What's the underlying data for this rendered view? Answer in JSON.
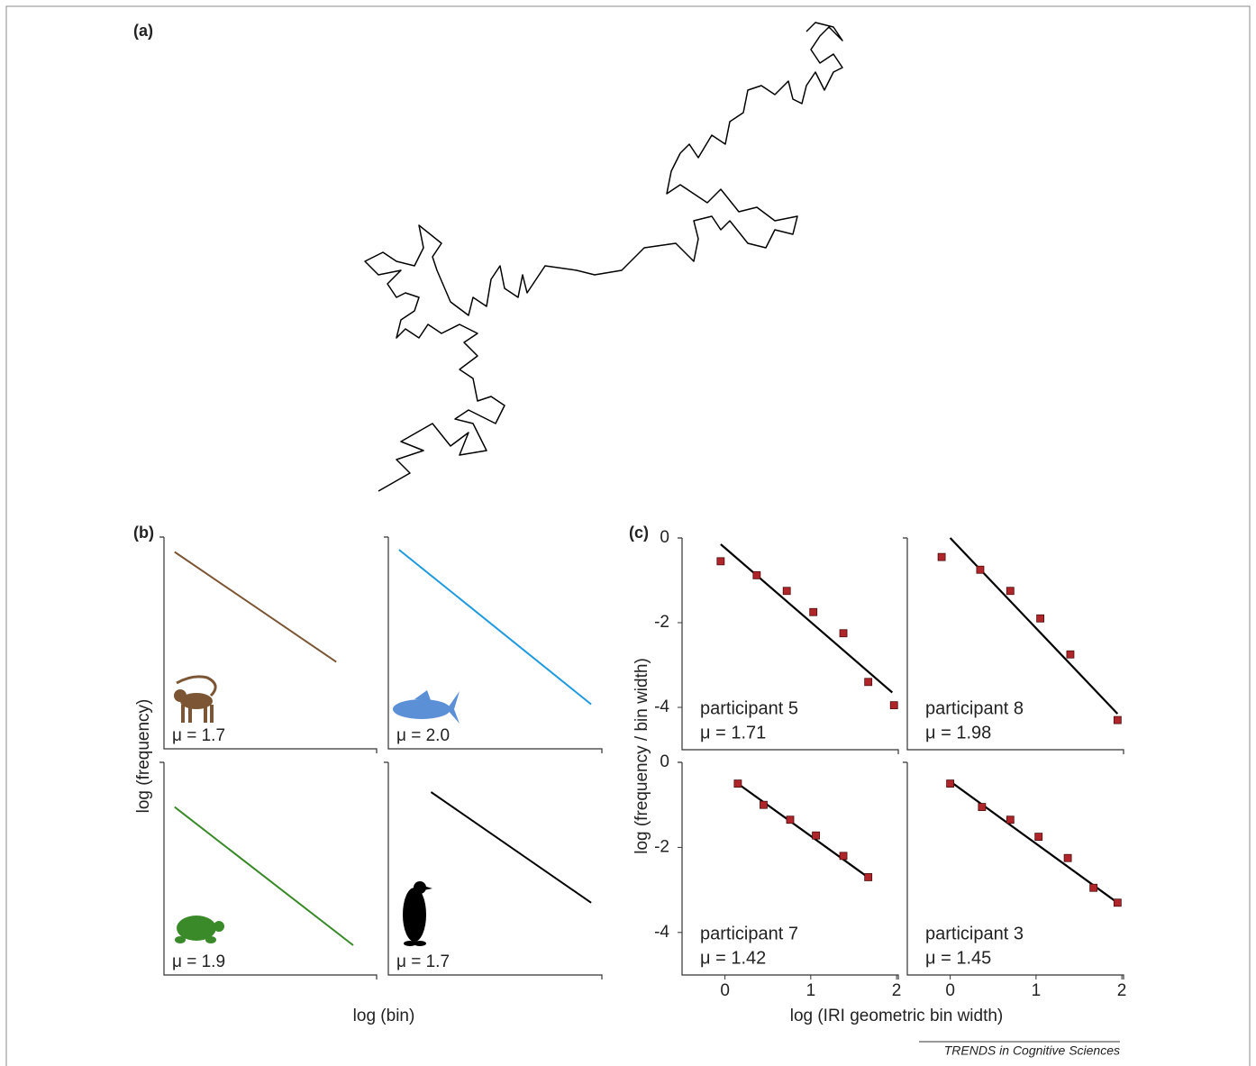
{
  "figure": {
    "panel_labels": [
      "(a)",
      "(b)",
      "(c)"
    ],
    "b_ylabel": "log (frequency)",
    "b_xlabel": "log (bin)",
    "c_ylabel": "log (frequency / bin width)",
    "c_xlabel": "log (IRI geometric bin width)",
    "source": "TRENDS in Cognitive Sciences"
  },
  "chart_data": [
    {
      "type": "walk",
      "color": "#000000",
      "xlim": [
        0,
        600
      ],
      "ylim": [
        0,
        560
      ],
      "x": [
        50,
        85,
        70,
        100,
        75,
        110,
        130,
        150,
        140,
        170,
        155,
        135,
        150,
        180,
        190,
        175,
        160,
        155,
        140,
        160,
        145,
        160,
        140,
        120,
        105,
        95,
        80,
        70,
        75,
        90,
        95,
        80,
        70,
        60,
        75,
        50,
        35,
        55,
        70,
        90,
        100,
        95,
        120,
        110,
        115,
        130,
        150,
        155,
        170,
        175,
        185,
        190,
        205,
        210,
        215,
        235,
        270,
        290,
        320,
        345,
        380,
        400,
        405,
        400,
        420,
        430,
        440,
        460,
        480,
        490,
        510,
        515,
        490,
        470,
        450,
        430,
        415,
        400,
        385,
        370,
        375,
        385,
        395,
        405,
        420,
        435,
        440,
        455,
        460,
        475,
        490,
        505,
        510,
        520,
        525,
        535,
        545,
        555,
        565,
        555,
        540,
        530,
        540,
        550,
        565,
        555,
        535,
        525
      ],
      "values": [
        15,
        35,
        50,
        60,
        70,
        90,
        65,
        80,
        55,
        60,
        90,
        95,
        105,
        90,
        110,
        120,
        115,
        140,
        150,
        165,
        180,
        190,
        200,
        190,
        200,
        185,
        195,
        185,
        205,
        215,
        230,
        235,
        230,
        245,
        260,
        255,
        270,
        280,
        270,
        265,
        285,
        310,
        290,
        275,
        260,
        225,
        210,
        230,
        220,
        250,
        265,
        240,
        230,
        255,
        235,
        265,
        260,
        255,
        260,
        285,
        290,
        270,
        295,
        315,
        320,
        305,
        315,
        290,
        285,
        305,
        300,
        320,
        315,
        330,
        325,
        350,
        335,
        345,
        355,
        345,
        370,
        390,
        400,
        385,
        410,
        400,
        425,
        435,
        460,
        465,
        455,
        470,
        450,
        445,
        465,
        480,
        460,
        480,
        485,
        500,
        490,
        505,
        520,
        530,
        515,
        530,
        535,
        525
      ]
    },
    {
      "type": "line",
      "color": "#7b5534",
      "xlim": [
        0,
        10
      ],
      "ylim": [
        0,
        10
      ],
      "x": [
        0.5,
        8.1
      ],
      "values": [
        9.3,
        4.1
      ],
      "annotation": [
        "μ = 1.7"
      ]
    },
    {
      "type": "line",
      "color": "#1f9ae0",
      "xlim": [
        0,
        10
      ],
      "ylim": [
        0,
        10
      ],
      "x": [
        0.5,
        9.5
      ],
      "values": [
        9.4,
        2.1
      ],
      "annotation": [
        "μ = 2.0"
      ]
    },
    {
      "type": "line",
      "color": "#3a8a2a",
      "xlim": [
        0,
        10
      ],
      "ylim": [
        0,
        10
      ],
      "x": [
        0.5,
        8.9
      ],
      "values": [
        7.9,
        1.4
      ],
      "annotation": [
        "μ = 1.9"
      ]
    },
    {
      "type": "line",
      "color": "#000000",
      "xlim": [
        0,
        10
      ],
      "ylim": [
        0,
        10
      ],
      "x": [
        2.0,
        9.5
      ],
      "values": [
        8.6,
        3.4
      ],
      "annotation": [
        "μ = 1.7"
      ]
    },
    {
      "type": "scatter",
      "color": "#b0252a",
      "xlim": [
        -0.5,
        2.02
      ],
      "ylim": [
        -5,
        0
      ],
      "yticks": [
        0,
        -2,
        -4
      ],
      "x": [
        -0.05,
        0.37,
        0.72,
        1.03,
        1.38,
        1.67,
        1.97
      ],
      "values": [
        -0.55,
        -0.88,
        -1.25,
        -1.75,
        -2.25,
        -3.4,
        -3.95
      ],
      "fit": {
        "x": [
          -0.05,
          1.95
        ],
        "values": [
          -0.15,
          -3.65
        ]
      },
      "annotation": [
        "participant 5",
        "μ = 1.71"
      ]
    },
    {
      "type": "scatter",
      "color": "#b0252a",
      "xlim": [
        -0.5,
        2.02
      ],
      "ylim": [
        -5,
        0
      ],
      "x": [
        -0.1,
        0.35,
        0.7,
        1.05,
        1.4,
        1.95
      ],
      "values": [
        -0.45,
        -0.75,
        -1.25,
        -1.9,
        -2.75,
        -4.3
      ],
      "fit": {
        "x": [
          0,
          1.95
        ],
        "values": [
          0,
          -4.15
        ]
      },
      "annotation": [
        "participant 8",
        "μ = 1.98"
      ]
    },
    {
      "type": "scatter",
      "color": "#b0252a",
      "xlim": [
        -0.5,
        2.02
      ],
      "ylim": [
        -5,
        0
      ],
      "yticks": [
        0,
        -2,
        -4
      ],
      "xticks": [
        0,
        1,
        2
      ],
      "x": [
        0.15,
        0.45,
        0.76,
        1.06,
        1.38,
        1.67
      ],
      "values": [
        -0.5,
        -1.0,
        -1.35,
        -1.72,
        -2.2,
        -2.7
      ],
      "fit": {
        "x": [
          0.15,
          1.7
        ],
        "values": [
          -0.5,
          -2.75
        ]
      },
      "annotation": [
        "participant 7",
        "μ = 1.42"
      ]
    },
    {
      "type": "scatter",
      "color": "#b0252a",
      "xlim": [
        -0.5,
        2.02
      ],
      "ylim": [
        -5,
        0
      ],
      "xticks": [
        0,
        1,
        2
      ],
      "x": [
        0,
        0.37,
        0.7,
        1.03,
        1.37,
        1.67,
        1.95
      ],
      "values": [
        -0.5,
        -1.05,
        -1.35,
        -1.75,
        -2.25,
        -2.95,
        -3.3
      ],
      "fit": {
        "x": [
          0,
          1.95
        ],
        "values": [
          -0.45,
          -3.3
        ]
      },
      "annotation": [
        "participant 3",
        "μ = 1.45"
      ]
    }
  ]
}
